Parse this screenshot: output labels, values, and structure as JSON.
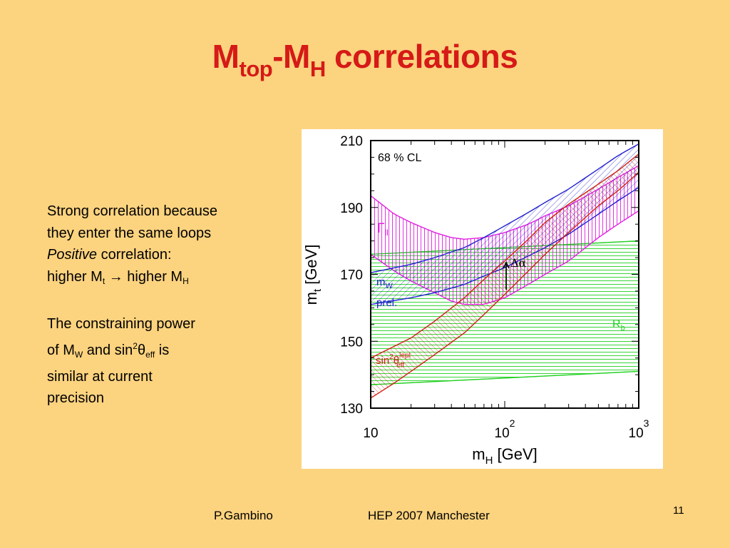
{
  "slide": {
    "title_main": "M",
    "title_sub1": "top",
    "title_mid": "-M",
    "title_sub2": "H",
    "title_tail": " correlations",
    "para1_line1": "Strong correlation because",
    "para1_line2": "they enter the same loops",
    "para1_positive": "Positive",
    "para1_line3_rest": " correlation:",
    "para1_l4_a": "higher M",
    "para1_l4_sub1": "t",
    "para1_l4_arrow": " → ",
    "para1_l4_b": "higher M",
    "para1_l4_sub2": "H",
    "para2_line1": "The constraining power",
    "para2_l2_a": "of M",
    "para2_l2_sub": "W",
    "para2_l2_b": " and sin",
    "para2_l2_sup": "2",
    "para2_l2_theta": "θ",
    "para2_l2_sub2": "eff",
    "para2_l2_c": " is",
    "para2_line3": "similar at current",
    "para2_line4": "precision",
    "footer_author": "P.Gambino",
    "footer_event": "HEP 2007 Manchester",
    "page_number": "11"
  },
  "chart_data": {
    "type": "area",
    "x_scale": "log",
    "xlim": [
      10,
      1000
    ],
    "ylim": [
      130,
      210
    ],
    "xlabel": "m_H [GeV]",
    "ylabel": "m_t [GeV]",
    "x_tick_labels": [
      "10",
      "10^2",
      "10^3"
    ],
    "y_tick_labels": [
      "130",
      "150",
      "170",
      "190",
      "210"
    ],
    "y_ticks": [
      130,
      150,
      170,
      190,
      210
    ],
    "annotation_cl": "68 % CL",
    "delta_alpha_label": "Δα",
    "colors": {
      "gamma_ll": "#E020E0",
      "mw": "#2020D0",
      "sin2theta": "#D02010",
      "rb": "#20D020"
    },
    "bands": [
      {
        "label_main": "Γ",
        "label_sub": "ll",
        "color": "#E020E0",
        "hatch": "vertical",
        "x": [
          10,
          15,
          20,
          30,
          40,
          50,
          70,
          100,
          150,
          200,
          300,
          500,
          700,
          1000
        ],
        "lower": [
          176,
          171,
          168,
          164.5,
          162,
          161,
          161,
          163,
          167,
          170,
          174,
          181,
          185,
          189
        ],
        "upper": [
          193.5,
          188,
          185.5,
          182.5,
          181,
          180.5,
          181,
          182.5,
          185,
          187.5,
          190.5,
          195.5,
          199,
          202.5
        ]
      },
      {
        "label_main": "m",
        "label_sub": "W",
        "label_line2": "prel.",
        "color": "#2020D0",
        "hatch": "diagonal",
        "x": [
          10,
          20,
          30,
          50,
          70,
          100,
          150,
          200,
          300,
          500,
          700,
          1000
        ],
        "lower": [
          161,
          163,
          164.5,
          167,
          169.5,
          172,
          175.5,
          178,
          182,
          188,
          192,
          196
        ],
        "upper": [
          170.5,
          173,
          175,
          178,
          181,
          184.5,
          188.5,
          191.5,
          195.5,
          201.5,
          205.5,
          209
        ]
      },
      {
        "label_main": "sin",
        "label_sup": "2",
        "label_theta": "θ",
        "label_sub": "eff",
        "label_sup2": "lept",
        "color": "#D02010",
        "hatch": "diagonal",
        "x": [
          10,
          15,
          20,
          30,
          50,
          70,
          100,
          150,
          200,
          300,
          500,
          700,
          1000
        ],
        "lower": [
          133,
          137.5,
          141,
          146,
          152.5,
          158,
          164,
          171,
          176,
          182.5,
          190.5,
          195,
          200.5
        ],
        "upper": [
          145,
          148.5,
          151,
          156,
          163,
          168.5,
          174,
          180.5,
          185.5,
          191,
          197,
          201,
          206
        ]
      },
      {
        "label_main": "R",
        "label_sub": "b",
        "color": "#20D020",
        "hatch": "horizontal",
        "x": [
          10,
          100,
          1000
        ],
        "lower": [
          137,
          139,
          141
        ],
        "upper": [
          176,
          178,
          180
        ]
      }
    ]
  }
}
